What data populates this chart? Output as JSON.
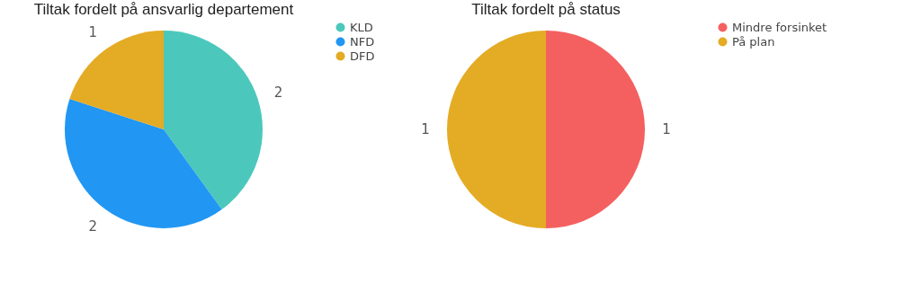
{
  "chart_data": [
    {
      "type": "pie",
      "title": "Tiltak fordelt på ansvarlig departement",
      "categories": [
        "KLD",
        "NFD",
        "DFD"
      ],
      "values": [
        2,
        2,
        1
      ],
      "colors": [
        "#4bc8bb",
        "#2196f3",
        "#e4ab24"
      ],
      "data_labels": true,
      "legend": "right"
    },
    {
      "type": "pie",
      "title": "Tiltak fordelt på status",
      "categories": [
        "Mindre forsinket",
        "På plan"
      ],
      "values": [
        1,
        1
      ],
      "colors": [
        "#f4605f",
        "#e4ab24"
      ],
      "data_labels": true,
      "legend": "right"
    }
  ]
}
